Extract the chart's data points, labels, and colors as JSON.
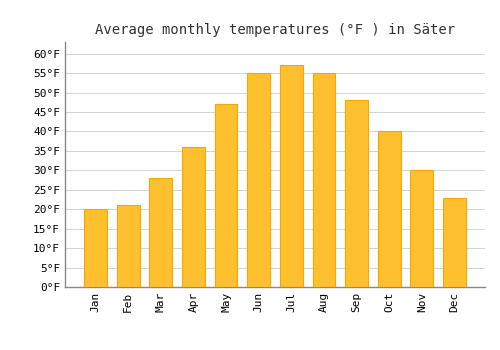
{
  "title": "Average monthly temperatures (°F ) in Säter",
  "months": [
    "Jan",
    "Feb",
    "Mar",
    "Apr",
    "May",
    "Jun",
    "Jul",
    "Aug",
    "Sep",
    "Oct",
    "Nov",
    "Dec"
  ],
  "values": [
    20,
    21,
    28,
    36,
    47,
    55,
    57,
    55,
    48,
    40,
    30,
    23
  ],
  "bar_color": "#FFC030",
  "bar_edge_color": "#F5A800",
  "background_color": "#ffffff",
  "grid_color": "#cccccc",
  "ylim": [
    0,
    63
  ],
  "yticks": [
    0,
    5,
    10,
    15,
    20,
    25,
    30,
    35,
    40,
    45,
    50,
    55,
    60
  ],
  "title_fontsize": 10,
  "tick_fontsize": 8,
  "fig_width": 5.0,
  "fig_height": 3.5,
  "dpi": 100
}
